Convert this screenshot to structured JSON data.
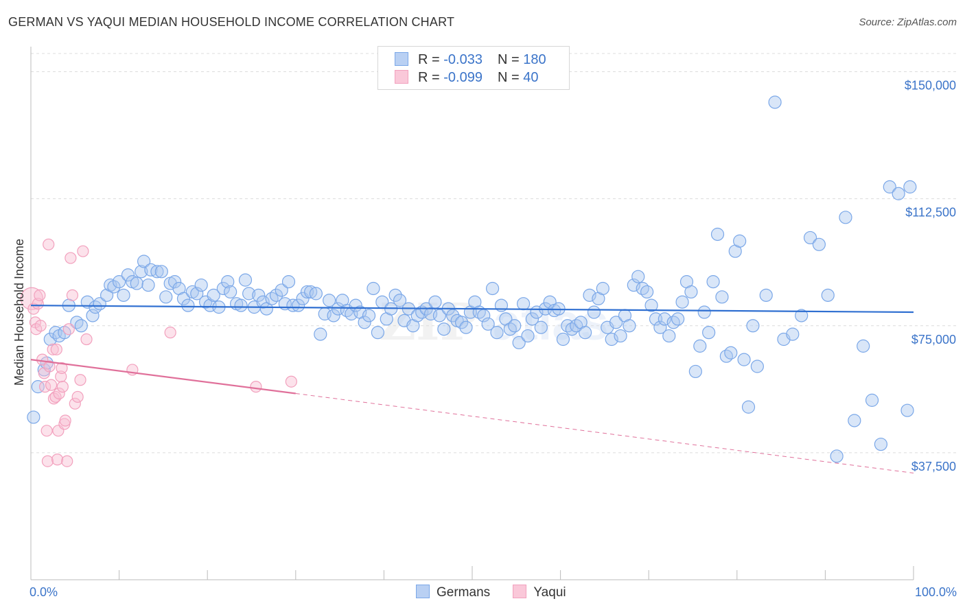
{
  "title": "GERMAN VS YAQUI MEDIAN HOUSEHOLD INCOME CORRELATION CHART",
  "source": "Source: ZipAtlas.com",
  "legend": {
    "rows": [
      {
        "r_label": "R = ",
        "r_value": "-0.033",
        "n_label": "N = ",
        "n_value": "180"
      },
      {
        "r_label": "R = ",
        "r_value": "-0.099",
        "n_label": "N = ",
        "n_value": "40"
      }
    ]
  },
  "chart_data": {
    "type": "scatter",
    "title": "GERMAN VS YAQUI MEDIAN HOUSEHOLD INCOME CORRELATION CHART",
    "ylabel": "Median Household Income",
    "xlabel": "",
    "xlim": [
      0,
      100
    ],
    "ylim": [
      0,
      157000
    ],
    "x_tick_labels": [
      "0.0%",
      "100.0%"
    ],
    "y_ticks": [
      37500,
      75000,
      112500,
      150000
    ],
    "y_tick_labels": [
      "$37,500",
      "$75,000",
      "$112,500",
      "$150,000"
    ],
    "grid": "horizontal dashed",
    "legend_position": "top-center",
    "colors": {
      "germans": "#7aa7e8",
      "yaqui": "#f2a0bd",
      "germans_line": "#2f6fd1",
      "yaqui_line": "#e0709a"
    },
    "series": [
      {
        "name": "Germans",
        "trend": {
          "x": [
            0,
            100
          ],
          "y": [
            81000,
            79000
          ]
        },
        "points": [
          [
            0.3,
            48000
          ],
          [
            0.8,
            57000
          ],
          [
            1.5,
            62000
          ],
          [
            1.8,
            64000
          ],
          [
            2.2,
            71000
          ],
          [
            2.8,
            73000
          ],
          [
            3.2,
            72000
          ],
          [
            3.8,
            73000
          ],
          [
            4.3,
            81000
          ],
          [
            5.2,
            76000
          ],
          [
            5.7,
            75000
          ],
          [
            6.4,
            82000
          ],
          [
            7.0,
            78000
          ],
          [
            7.3,
            80500
          ],
          [
            7.8,
            81500
          ],
          [
            8.6,
            84000
          ],
          [
            9.0,
            87000
          ],
          [
            9.4,
            86500
          ],
          [
            10.0,
            88000
          ],
          [
            10.5,
            84000
          ],
          [
            11.0,
            90000
          ],
          [
            11.5,
            88000
          ],
          [
            12.0,
            87500
          ],
          [
            12.5,
            91000
          ],
          [
            12.8,
            94000
          ],
          [
            13.3,
            87000
          ],
          [
            13.6,
            91500
          ],
          [
            14.3,
            91000
          ],
          [
            14.8,
            91000
          ],
          [
            15.3,
            83500
          ],
          [
            15.8,
            87500
          ],
          [
            16.3,
            88000
          ],
          [
            16.8,
            86000
          ],
          [
            17.3,
            83000
          ],
          [
            17.8,
            81000
          ],
          [
            18.3,
            85000
          ],
          [
            18.8,
            84500
          ],
          [
            19.3,
            87000
          ],
          [
            19.8,
            82000
          ],
          [
            20.3,
            81000
          ],
          [
            20.7,
            84000
          ],
          [
            21.3,
            80500
          ],
          [
            21.8,
            86000
          ],
          [
            22.3,
            88000
          ],
          [
            22.6,
            85000
          ],
          [
            23.3,
            81500
          ],
          [
            23.8,
            81000
          ],
          [
            24.3,
            88500
          ],
          [
            24.7,
            84500
          ],
          [
            25.3,
            80500
          ],
          [
            25.8,
            84000
          ],
          [
            26.3,
            82000
          ],
          [
            26.7,
            80000
          ],
          [
            27.3,
            83000
          ],
          [
            27.8,
            84000
          ],
          [
            28.4,
            85500
          ],
          [
            28.8,
            81500
          ],
          [
            29.2,
            88000
          ],
          [
            29.7,
            81000
          ],
          [
            30.3,
            81000
          ],
          [
            30.8,
            83000
          ],
          [
            31.3,
            85000
          ],
          [
            31.7,
            85000
          ],
          [
            32.3,
            84500
          ],
          [
            32.8,
            72500
          ],
          [
            33.3,
            78500
          ],
          [
            33.8,
            82500
          ],
          [
            34.3,
            78000
          ],
          [
            34.8,
            80000
          ],
          [
            35.3,
            82500
          ],
          [
            35.8,
            79500
          ],
          [
            36.3,
            78500
          ],
          [
            36.8,
            81000
          ],
          [
            37.3,
            79000
          ],
          [
            37.8,
            76000
          ],
          [
            38.3,
            78000
          ],
          [
            38.8,
            86000
          ],
          [
            39.3,
            73000
          ],
          [
            39.8,
            82000
          ],
          [
            40.3,
            77000
          ],
          [
            40.8,
            80000
          ],
          [
            41.3,
            84000
          ],
          [
            41.8,
            82500
          ],
          [
            42.3,
            76500
          ],
          [
            42.8,
            80000
          ],
          [
            43.3,
            75000
          ],
          [
            43.8,
            78000
          ],
          [
            44.3,
            79000
          ],
          [
            44.8,
            80000
          ],
          [
            45.3,
            78500
          ],
          [
            45.8,
            82000
          ],
          [
            46.3,
            78000
          ],
          [
            46.8,
            74000
          ],
          [
            47.3,
            80000
          ],
          [
            47.8,
            78000
          ],
          [
            48.3,
            76500
          ],
          [
            48.8,
            76000
          ],
          [
            49.3,
            74500
          ],
          [
            49.8,
            79000
          ],
          [
            50.3,
            82000
          ],
          [
            50.8,
            79000
          ],
          [
            51.3,
            78000
          ],
          [
            51.8,
            75500
          ],
          [
            52.3,
            86000
          ],
          [
            52.8,
            73000
          ],
          [
            53.3,
            81000
          ],
          [
            53.8,
            77000
          ],
          [
            54.3,
            74000
          ],
          [
            54.8,
            75000
          ],
          [
            55.3,
            70000
          ],
          [
            55.8,
            81500
          ],
          [
            56.3,
            72000
          ],
          [
            56.8,
            77000
          ],
          [
            57.3,
            79000
          ],
          [
            57.8,
            74500
          ],
          [
            58.3,
            80000
          ],
          [
            58.8,
            82000
          ],
          [
            59.3,
            79500
          ],
          [
            59.8,
            80000
          ],
          [
            60.3,
            71000
          ],
          [
            60.8,
            75000
          ],
          [
            61.3,
            74000
          ],
          [
            61.8,
            75000
          ],
          [
            62.3,
            76000
          ],
          [
            62.8,
            73000
          ],
          [
            63.3,
            84000
          ],
          [
            63.8,
            79000
          ],
          [
            64.3,
            83000
          ],
          [
            64.8,
            86000
          ],
          [
            65.3,
            74500
          ],
          [
            65.8,
            71000
          ],
          [
            66.3,
            76000
          ],
          [
            66.8,
            72000
          ],
          [
            67.3,
            78000
          ],
          [
            67.8,
            75000
          ],
          [
            68.3,
            87000
          ],
          [
            68.8,
            89500
          ],
          [
            69.3,
            86000
          ],
          [
            69.8,
            85000
          ],
          [
            70.3,
            81000
          ],
          [
            70.8,
            77000
          ],
          [
            71.3,
            74500
          ],
          [
            71.8,
            77000
          ],
          [
            72.3,
            72000
          ],
          [
            72.8,
            76000
          ],
          [
            73.3,
            77000
          ],
          [
            73.8,
            82000
          ],
          [
            74.3,
            88000
          ],
          [
            74.8,
            85000
          ],
          [
            75.3,
            61500
          ],
          [
            75.8,
            69000
          ],
          [
            76.3,
            79000
          ],
          [
            76.8,
            73000
          ],
          [
            77.3,
            88000
          ],
          [
            77.8,
            102000
          ],
          [
            78.3,
            83500
          ],
          [
            78.8,
            66000
          ],
          [
            79.3,
            67000
          ],
          [
            79.8,
            97000
          ],
          [
            80.3,
            100000
          ],
          [
            80.8,
            65000
          ],
          [
            81.3,
            51000
          ],
          [
            81.8,
            75000
          ],
          [
            82.3,
            63000
          ],
          [
            83.3,
            84000
          ],
          [
            84.3,
            141000
          ],
          [
            85.3,
            71000
          ],
          [
            86.3,
            72500
          ],
          [
            87.3,
            78000
          ],
          [
            88.3,
            101000
          ],
          [
            89.3,
            99000
          ],
          [
            90.3,
            84000
          ],
          [
            91.3,
            36500
          ],
          [
            92.3,
            107000
          ],
          [
            93.3,
            47000
          ],
          [
            94.3,
            69000
          ],
          [
            95.3,
            53000
          ],
          [
            96.3,
            40000
          ],
          [
            97.3,
            116000
          ],
          [
            98.3,
            114000
          ],
          [
            99.3,
            50000
          ],
          [
            99.6,
            116000
          ]
        ]
      },
      {
        "name": "Yaqui",
        "trend": {
          "x": [
            0,
            30
          ],
          "y": [
            65000,
            55000
          ]
        },
        "trend_dashed": {
          "x": [
            30,
            100
          ],
          "y": [
            55000,
            31500
          ]
        },
        "points": [
          [
            0.1,
            83000
          ],
          [
            0.3,
            80000
          ],
          [
            0.5,
            76000
          ],
          [
            0.6,
            74000
          ],
          [
            0.8,
            81500
          ],
          [
            1.0,
            84000
          ],
          [
            1.1,
            75000
          ],
          [
            1.3,
            65000
          ],
          [
            1.5,
            61000
          ],
          [
            1.6,
            57000
          ],
          [
            1.8,
            44000
          ],
          [
            1.9,
            35000
          ],
          [
            2.0,
            99000
          ],
          [
            2.1,
            63000
          ],
          [
            2.3,
            57500
          ],
          [
            2.5,
            68000
          ],
          [
            2.6,
            53500
          ],
          [
            2.8,
            54000
          ],
          [
            2.9,
            68000
          ],
          [
            3.0,
            35500
          ],
          [
            3.1,
            44000
          ],
          [
            3.2,
            55000
          ],
          [
            3.4,
            60000
          ],
          [
            3.5,
            62500
          ],
          [
            3.6,
            57000
          ],
          [
            3.8,
            46000
          ],
          [
            3.9,
            47000
          ],
          [
            4.1,
            35000
          ],
          [
            4.3,
            74000
          ],
          [
            4.5,
            95000
          ],
          [
            4.7,
            84000
          ],
          [
            5.0,
            52000
          ],
          [
            5.3,
            54000
          ],
          [
            5.6,
            59000
          ],
          [
            5.9,
            97000
          ],
          [
            6.3,
            71000
          ],
          [
            11.5,
            62000
          ],
          [
            15.8,
            73000
          ],
          [
            25.5,
            57000
          ],
          [
            29.5,
            58500
          ]
        ]
      }
    ]
  }
}
